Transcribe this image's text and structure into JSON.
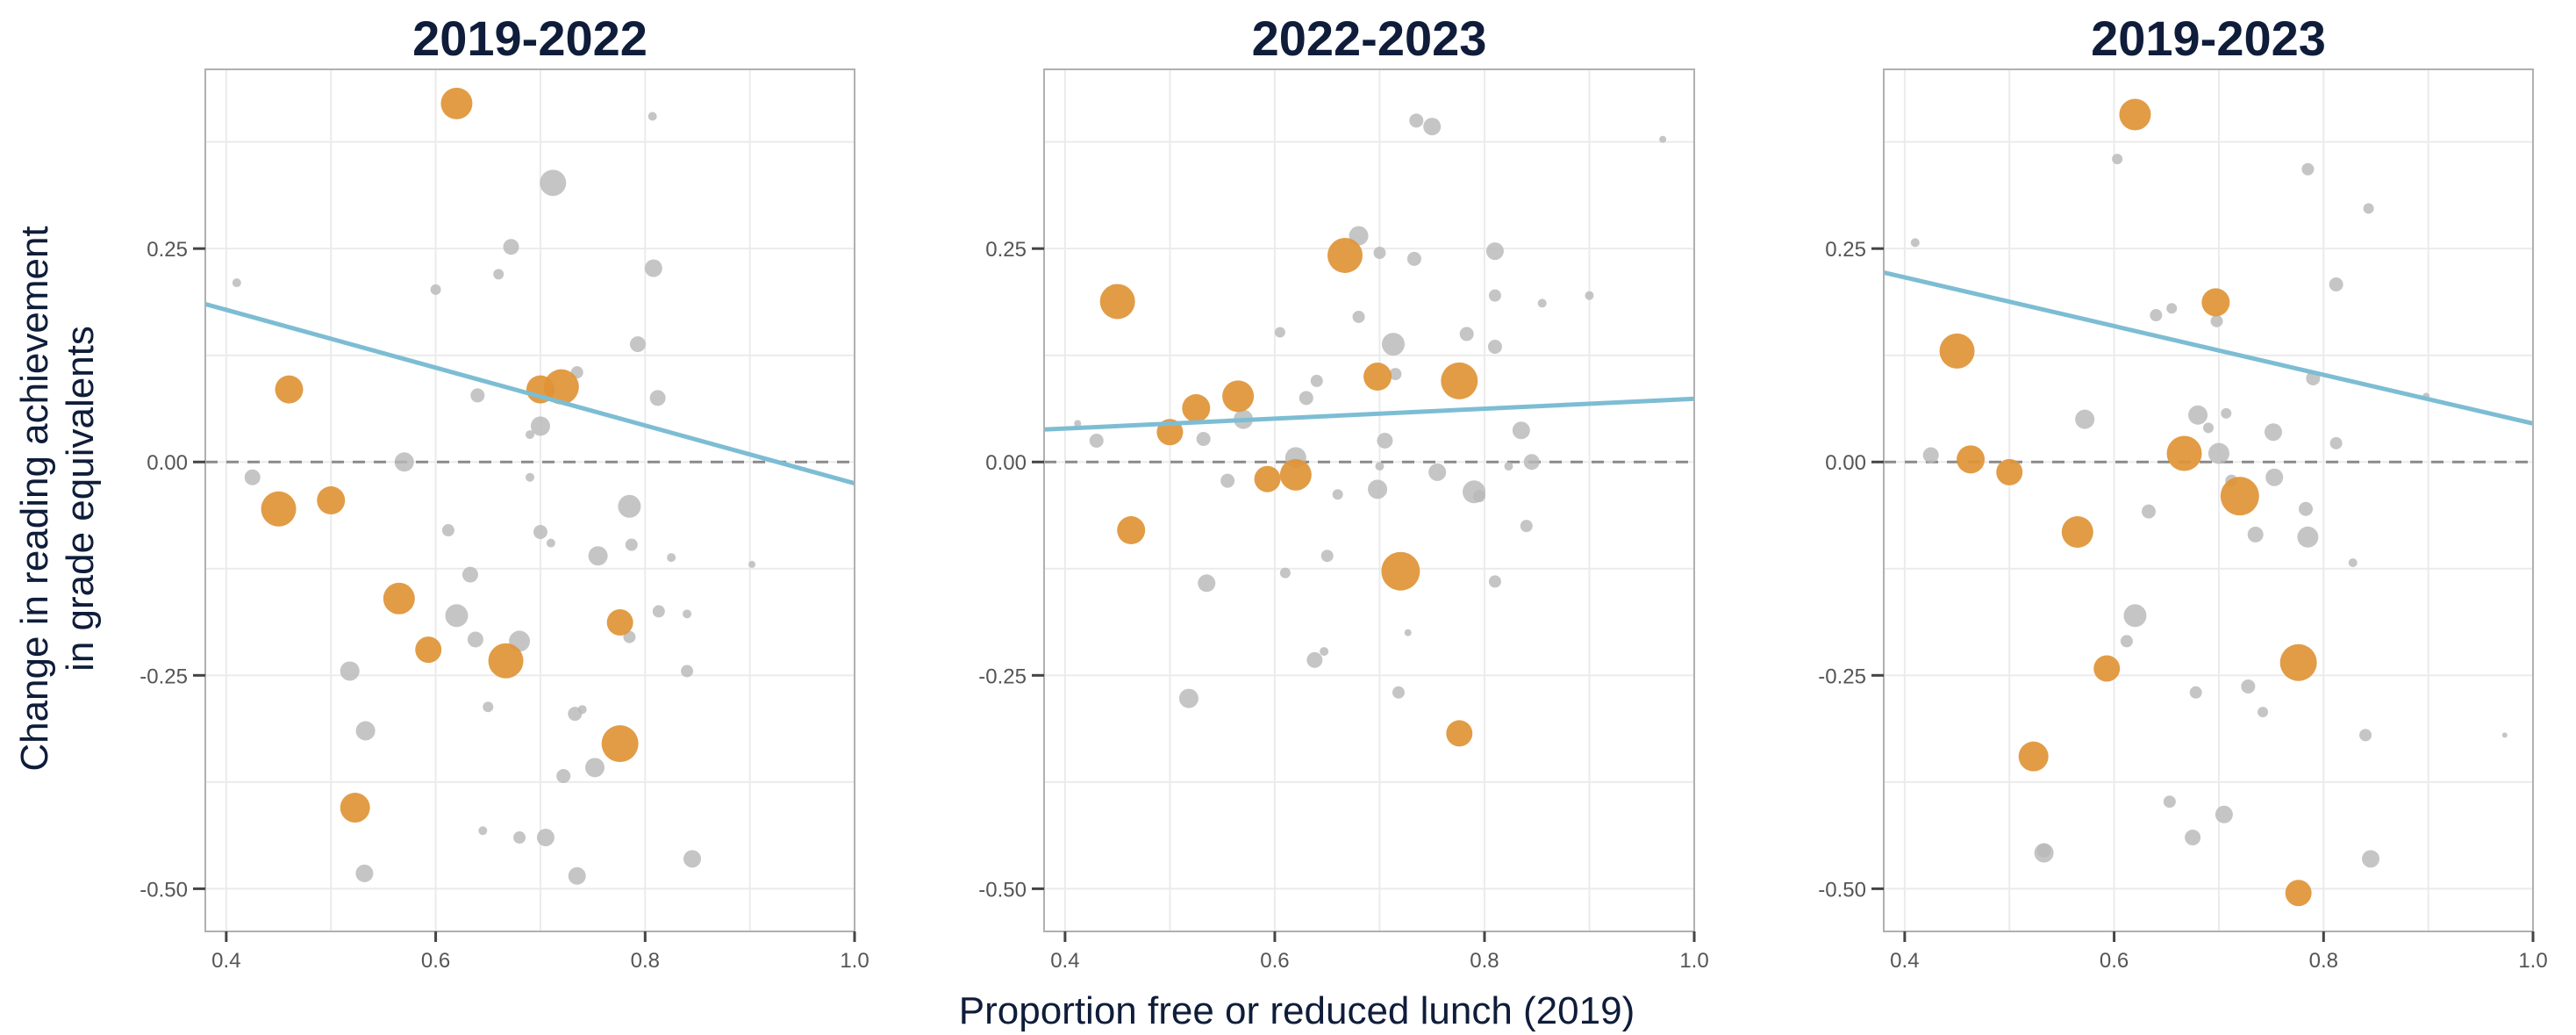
{
  "figure": {
    "xlabel": "Proportion free or reduced lunch (2019)",
    "ylabel_lines": [
      "Change in reading  achievement",
      "in grade equivalents"
    ]
  },
  "colors": {
    "highlight": "#e09436",
    "other": "#b8b8b8",
    "fit_line": "#7dbdd4",
    "zero_line": "#8a8a8a",
    "grid": "#ebebeb",
    "frame": "#b0b0b0"
  },
  "chart_data": [
    {
      "type": "scatter",
      "title": "2019-2022",
      "xlim": [
        0.38,
        1.0
      ],
      "ylim": [
        -0.55,
        0.46
      ],
      "x_ticks": [
        0.4,
        0.6,
        0.8,
        1.0
      ],
      "x_tick_labels": [
        "0.4",
        "0.6",
        "0.8",
        "1.0"
      ],
      "y_ticks": [
        0.25,
        0.0,
        -0.25,
        -0.5
      ],
      "y_tick_labels": [
        "0.25",
        "0.00",
        "-0.25",
        "-0.50"
      ],
      "grid": true,
      "zero_line": true,
      "fit_line": [
        [
          0.38,
          0.185
        ],
        [
          1.0,
          -0.025
        ]
      ],
      "points": [
        {
          "x": 0.62,
          "y": 0.42,
          "s": 18,
          "h": true
        },
        {
          "x": 0.46,
          "y": 0.085,
          "s": 16,
          "h": true
        },
        {
          "x": 0.45,
          "y": -0.055,
          "s": 20,
          "h": true
        },
        {
          "x": 0.5,
          "y": -0.045,
          "s": 16,
          "h": true
        },
        {
          "x": 0.565,
          "y": -0.16,
          "s": 18,
          "h": true
        },
        {
          "x": 0.593,
          "y": -0.22,
          "s": 15,
          "h": true
        },
        {
          "x": 0.667,
          "y": -0.233,
          "s": 20,
          "h": true
        },
        {
          "x": 0.7,
          "y": 0.085,
          "s": 16,
          "h": true
        },
        {
          "x": 0.72,
          "y": 0.088,
          "s": 20,
          "h": true
        },
        {
          "x": 0.776,
          "y": -0.188,
          "s": 15,
          "h": true
        },
        {
          "x": 0.776,
          "y": -0.33,
          "s": 21,
          "h": true
        },
        {
          "x": 0.523,
          "y": -0.405,
          "s": 17,
          "h": true
        },
        {
          "x": 0.712,
          "y": 0.327,
          "s": 15,
          "h": false
        },
        {
          "x": 0.807,
          "y": 0.405,
          "s": 5,
          "h": false
        },
        {
          "x": 0.41,
          "y": 0.21,
          "s": 5,
          "h": false
        },
        {
          "x": 0.672,
          "y": 0.252,
          "s": 9,
          "h": false
        },
        {
          "x": 0.6,
          "y": 0.202,
          "s": 6,
          "h": false
        },
        {
          "x": 0.66,
          "y": 0.22,
          "s": 6,
          "h": false
        },
        {
          "x": 0.808,
          "y": 0.227,
          "s": 10,
          "h": false
        },
        {
          "x": 0.793,
          "y": 0.138,
          "s": 9,
          "h": false
        },
        {
          "x": 0.735,
          "y": 0.105,
          "s": 7,
          "h": false
        },
        {
          "x": 0.64,
          "y": 0.078,
          "s": 8,
          "h": false
        },
        {
          "x": 0.812,
          "y": 0.075,
          "s": 9,
          "h": false
        },
        {
          "x": 0.7,
          "y": 0.042,
          "s": 11,
          "h": false
        },
        {
          "x": 0.69,
          "y": 0.032,
          "s": 5,
          "h": false
        },
        {
          "x": 0.57,
          "y": 0.0,
          "s": 11,
          "h": false
        },
        {
          "x": 0.425,
          "y": -0.018,
          "s": 9,
          "h": false
        },
        {
          "x": 0.69,
          "y": -0.018,
          "s": 5,
          "h": false
        },
        {
          "x": 0.785,
          "y": -0.052,
          "s": 13,
          "h": false
        },
        {
          "x": 0.612,
          "y": -0.08,
          "s": 7,
          "h": false
        },
        {
          "x": 0.7,
          "y": -0.082,
          "s": 8,
          "h": false
        },
        {
          "x": 0.71,
          "y": -0.095,
          "s": 5,
          "h": false
        },
        {
          "x": 0.787,
          "y": -0.097,
          "s": 7,
          "h": false
        },
        {
          "x": 0.825,
          "y": -0.112,
          "s": 5,
          "h": false
        },
        {
          "x": 0.755,
          "y": -0.11,
          "s": 11,
          "h": false
        },
        {
          "x": 0.902,
          "y": -0.12,
          "s": 4,
          "h": false
        },
        {
          "x": 0.633,
          "y": -0.132,
          "s": 9,
          "h": false
        },
        {
          "x": 0.813,
          "y": -0.175,
          "s": 7,
          "h": false
        },
        {
          "x": 0.62,
          "y": -0.18,
          "s": 13,
          "h": false
        },
        {
          "x": 0.84,
          "y": -0.178,
          "s": 5,
          "h": false
        },
        {
          "x": 0.638,
          "y": -0.208,
          "s": 9,
          "h": false
        },
        {
          "x": 0.68,
          "y": -0.21,
          "s": 12,
          "h": false
        },
        {
          "x": 0.785,
          "y": -0.205,
          "s": 7,
          "h": false
        },
        {
          "x": 0.518,
          "y": -0.245,
          "s": 11,
          "h": false
        },
        {
          "x": 0.84,
          "y": -0.245,
          "s": 7,
          "h": false
        },
        {
          "x": 0.533,
          "y": -0.315,
          "s": 11,
          "h": false
        },
        {
          "x": 0.65,
          "y": -0.287,
          "s": 6,
          "h": false
        },
        {
          "x": 0.733,
          "y": -0.295,
          "s": 8,
          "h": false
        },
        {
          "x": 0.74,
          "y": -0.29,
          "s": 5,
          "h": false
        },
        {
          "x": 0.752,
          "y": -0.358,
          "s": 11,
          "h": false
        },
        {
          "x": 0.722,
          "y": -0.368,
          "s": 8,
          "h": false
        },
        {
          "x": 0.645,
          "y": -0.432,
          "s": 5,
          "h": false
        },
        {
          "x": 0.68,
          "y": -0.44,
          "s": 7,
          "h": false
        },
        {
          "x": 0.705,
          "y": -0.44,
          "s": 10,
          "h": false
        },
        {
          "x": 0.845,
          "y": -0.465,
          "s": 10,
          "h": false
        },
        {
          "x": 0.532,
          "y": -0.482,
          "s": 10,
          "h": false
        },
        {
          "x": 0.735,
          "y": -0.485,
          "s": 10,
          "h": false
        }
      ]
    },
    {
      "type": "scatter",
      "title": "2022-2023",
      "xlim": [
        0.38,
        1.0
      ],
      "ylim": [
        -0.55,
        0.46
      ],
      "x_ticks": [
        0.4,
        0.6,
        0.8,
        1.0
      ],
      "x_tick_labels": [
        "0.4",
        "0.6",
        "0.8",
        "1.0"
      ],
      "y_ticks": [
        0.25,
        0.0,
        -0.25,
        -0.5
      ],
      "y_tick_labels": [
        "0.25",
        "0.00",
        "-0.25",
        "-0.50"
      ],
      "grid": true,
      "zero_line": true,
      "fit_line": [
        [
          0.38,
          0.038
        ],
        [
          1.0,
          0.074
        ]
      ],
      "points": [
        {
          "x": 0.45,
          "y": 0.188,
          "s": 20,
          "h": true
        },
        {
          "x": 0.667,
          "y": 0.242,
          "s": 20,
          "h": true
        },
        {
          "x": 0.565,
          "y": 0.077,
          "s": 18,
          "h": true
        },
        {
          "x": 0.525,
          "y": 0.063,
          "s": 16,
          "h": true
        },
        {
          "x": 0.5,
          "y": 0.035,
          "s": 15,
          "h": true
        },
        {
          "x": 0.698,
          "y": 0.1,
          "s": 16,
          "h": true
        },
        {
          "x": 0.776,
          "y": 0.095,
          "s": 21,
          "h": true
        },
        {
          "x": 0.593,
          "y": -0.02,
          "s": 15,
          "h": true
        },
        {
          "x": 0.62,
          "y": -0.015,
          "s": 18,
          "h": true
        },
        {
          "x": 0.463,
          "y": -0.08,
          "s": 16,
          "h": true
        },
        {
          "x": 0.72,
          "y": -0.128,
          "s": 22,
          "h": true
        },
        {
          "x": 0.776,
          "y": -0.318,
          "s": 15,
          "h": true
        },
        {
          "x": 0.735,
          "y": 0.4,
          "s": 8,
          "h": false
        },
        {
          "x": 0.75,
          "y": 0.393,
          "s": 10,
          "h": false
        },
        {
          "x": 0.97,
          "y": 0.378,
          "s": 4,
          "h": false
        },
        {
          "x": 0.68,
          "y": 0.265,
          "s": 11,
          "h": false
        },
        {
          "x": 0.81,
          "y": 0.247,
          "s": 10,
          "h": false
        },
        {
          "x": 0.7,
          "y": 0.245,
          "s": 7,
          "h": false
        },
        {
          "x": 0.733,
          "y": 0.238,
          "s": 8,
          "h": false
        },
        {
          "x": 0.81,
          "y": 0.195,
          "s": 7,
          "h": false
        },
        {
          "x": 0.855,
          "y": 0.186,
          "s": 5,
          "h": false
        },
        {
          "x": 0.9,
          "y": 0.195,
          "s": 5,
          "h": false
        },
        {
          "x": 0.68,
          "y": 0.17,
          "s": 7,
          "h": false
        },
        {
          "x": 0.605,
          "y": 0.152,
          "s": 6,
          "h": false
        },
        {
          "x": 0.713,
          "y": 0.138,
          "s": 13,
          "h": false
        },
        {
          "x": 0.783,
          "y": 0.15,
          "s": 8,
          "h": false
        },
        {
          "x": 0.81,
          "y": 0.135,
          "s": 8,
          "h": false
        },
        {
          "x": 0.64,
          "y": 0.095,
          "s": 7,
          "h": false
        },
        {
          "x": 0.715,
          "y": 0.103,
          "s": 7,
          "h": false
        },
        {
          "x": 0.63,
          "y": 0.075,
          "s": 8,
          "h": false
        },
        {
          "x": 0.57,
          "y": 0.05,
          "s": 11,
          "h": false
        },
        {
          "x": 0.412,
          "y": 0.045,
          "s": 4,
          "h": false
        },
        {
          "x": 0.43,
          "y": 0.025,
          "s": 8,
          "h": false
        },
        {
          "x": 0.532,
          "y": 0.027,
          "s": 8,
          "h": false
        },
        {
          "x": 0.705,
          "y": 0.025,
          "s": 9,
          "h": false
        },
        {
          "x": 0.835,
          "y": 0.037,
          "s": 10,
          "h": false
        },
        {
          "x": 0.62,
          "y": 0.005,
          "s": 12,
          "h": false
        },
        {
          "x": 0.7,
          "y": -0.005,
          "s": 5,
          "h": false
        },
        {
          "x": 0.845,
          "y": 0.0,
          "s": 9,
          "h": false
        },
        {
          "x": 0.823,
          "y": -0.005,
          "s": 5,
          "h": false
        },
        {
          "x": 0.555,
          "y": -0.022,
          "s": 8,
          "h": false
        },
        {
          "x": 0.755,
          "y": -0.012,
          "s": 10,
          "h": false
        },
        {
          "x": 0.698,
          "y": -0.032,
          "s": 11,
          "h": false
        },
        {
          "x": 0.66,
          "y": -0.038,
          "s": 6,
          "h": false
        },
        {
          "x": 0.79,
          "y": -0.035,
          "s": 13,
          "h": false
        },
        {
          "x": 0.795,
          "y": -0.04,
          "s": 7,
          "h": false
        },
        {
          "x": 0.84,
          "y": -0.075,
          "s": 7,
          "h": false
        },
        {
          "x": 0.65,
          "y": -0.11,
          "s": 7,
          "h": false
        },
        {
          "x": 0.61,
          "y": -0.13,
          "s": 6,
          "h": false
        },
        {
          "x": 0.535,
          "y": -0.142,
          "s": 10,
          "h": false
        },
        {
          "x": 0.81,
          "y": -0.14,
          "s": 7,
          "h": false
        },
        {
          "x": 0.727,
          "y": -0.2,
          "s": 4,
          "h": false
        },
        {
          "x": 0.647,
          "y": -0.222,
          "s": 5,
          "h": false
        },
        {
          "x": 0.638,
          "y": -0.232,
          "s": 9,
          "h": false
        },
        {
          "x": 0.718,
          "y": -0.27,
          "s": 7,
          "h": false
        },
        {
          "x": 0.518,
          "y": -0.277,
          "s": 11,
          "h": false
        }
      ]
    },
    {
      "type": "scatter",
      "title": "2019-2023",
      "xlim": [
        0.38,
        1.0
      ],
      "ylim": [
        -0.55,
        0.46
      ],
      "x_ticks": [
        0.4,
        0.6,
        0.8,
        1.0
      ],
      "x_tick_labels": [
        "0.4",
        "0.6",
        "0.8",
        "1.0"
      ],
      "y_ticks": [
        0.25,
        0.0,
        -0.25,
        -0.5
      ],
      "y_tick_labels": [
        "0.25",
        "0.00",
        "-0.25",
        "-0.50"
      ],
      "grid": true,
      "zero_line": true,
      "fit_line": [
        [
          0.38,
          0.222
        ],
        [
          1.0,
          0.045
        ]
      ],
      "points": [
        {
          "x": 0.62,
          "y": 0.407,
          "s": 18,
          "h": true
        },
        {
          "x": 0.45,
          "y": 0.13,
          "s": 20,
          "h": true
        },
        {
          "x": 0.697,
          "y": 0.187,
          "s": 16,
          "h": true
        },
        {
          "x": 0.463,
          "y": 0.003,
          "s": 16,
          "h": true
        },
        {
          "x": 0.5,
          "y": -0.012,
          "s": 15,
          "h": true
        },
        {
          "x": 0.667,
          "y": 0.01,
          "s": 20,
          "h": true
        },
        {
          "x": 0.72,
          "y": -0.04,
          "s": 22,
          "h": true
        },
        {
          "x": 0.565,
          "y": -0.082,
          "s": 18,
          "h": true
        },
        {
          "x": 0.593,
          "y": -0.242,
          "s": 15,
          "h": true
        },
        {
          "x": 0.776,
          "y": -0.235,
          "s": 21,
          "h": true
        },
        {
          "x": 0.523,
          "y": -0.345,
          "s": 17,
          "h": true
        },
        {
          "x": 0.776,
          "y": -0.505,
          "s": 15,
          "h": true
        },
        {
          "x": 0.603,
          "y": 0.355,
          "s": 6,
          "h": false
        },
        {
          "x": 0.785,
          "y": 0.343,
          "s": 7,
          "h": false
        },
        {
          "x": 0.843,
          "y": 0.297,
          "s": 6,
          "h": false
        },
        {
          "x": 0.41,
          "y": 0.257,
          "s": 5,
          "h": false
        },
        {
          "x": 0.812,
          "y": 0.208,
          "s": 8,
          "h": false
        },
        {
          "x": 0.64,
          "y": 0.172,
          "s": 7,
          "h": false
        },
        {
          "x": 0.655,
          "y": 0.18,
          "s": 6,
          "h": false
        },
        {
          "x": 0.698,
          "y": 0.165,
          "s": 7,
          "h": false
        },
        {
          "x": 0.79,
          "y": 0.098,
          "s": 8,
          "h": false
        },
        {
          "x": 0.898,
          "y": 0.077,
          "s": 4,
          "h": false
        },
        {
          "x": 0.68,
          "y": 0.055,
          "s": 11,
          "h": false
        },
        {
          "x": 0.572,
          "y": 0.05,
          "s": 11,
          "h": false
        },
        {
          "x": 0.707,
          "y": 0.057,
          "s": 6,
          "h": false
        },
        {
          "x": 0.752,
          "y": 0.035,
          "s": 10,
          "h": false
        },
        {
          "x": 0.69,
          "y": 0.04,
          "s": 6,
          "h": false
        },
        {
          "x": 0.812,
          "y": 0.022,
          "s": 7,
          "h": false
        },
        {
          "x": 0.7,
          "y": 0.01,
          "s": 12,
          "h": false
        },
        {
          "x": 0.425,
          "y": 0.008,
          "s": 9,
          "h": false
        },
        {
          "x": 0.753,
          "y": -0.018,
          "s": 10,
          "h": false
        },
        {
          "x": 0.712,
          "y": -0.022,
          "s": 7,
          "h": false
        },
        {
          "x": 0.783,
          "y": -0.055,
          "s": 8,
          "h": false
        },
        {
          "x": 0.633,
          "y": -0.058,
          "s": 8,
          "h": false
        },
        {
          "x": 0.735,
          "y": -0.085,
          "s": 9,
          "h": false
        },
        {
          "x": 0.785,
          "y": -0.088,
          "s": 12,
          "h": false
        },
        {
          "x": 0.828,
          "y": -0.118,
          "s": 5,
          "h": false
        },
        {
          "x": 0.62,
          "y": -0.18,
          "s": 13,
          "h": false
        },
        {
          "x": 0.612,
          "y": -0.21,
          "s": 7,
          "h": false
        },
        {
          "x": 0.728,
          "y": -0.263,
          "s": 8,
          "h": false
        },
        {
          "x": 0.678,
          "y": -0.27,
          "s": 7,
          "h": false
        },
        {
          "x": 0.742,
          "y": -0.293,
          "s": 6,
          "h": false
        },
        {
          "x": 0.84,
          "y": -0.32,
          "s": 7,
          "h": false
        },
        {
          "x": 0.973,
          "y": -0.32,
          "s": 3,
          "h": false
        },
        {
          "x": 0.653,
          "y": -0.398,
          "s": 7,
          "h": false
        },
        {
          "x": 0.705,
          "y": -0.413,
          "s": 10,
          "h": false
        },
        {
          "x": 0.675,
          "y": -0.44,
          "s": 9,
          "h": false
        },
        {
          "x": 0.533,
          "y": -0.458,
          "s": 11,
          "h": false
        },
        {
          "x": 0.533,
          "y": -0.455,
          "s": 8,
          "h": false
        },
        {
          "x": 0.845,
          "y": -0.465,
          "s": 10,
          "h": false
        }
      ]
    }
  ]
}
